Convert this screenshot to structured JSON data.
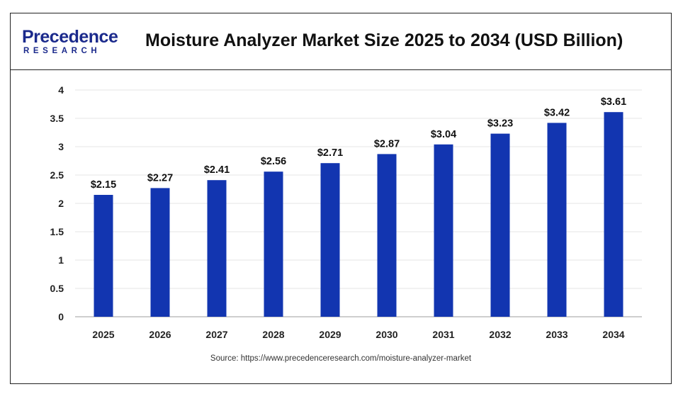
{
  "header": {
    "logo_top": "Precedence",
    "logo_bottom": "RESEARCH",
    "title": "Moisture Analyzer Market Size 2025 to 2034 (USD Billion)"
  },
  "footer": {
    "source": "Source: https://www.precedenceresearch.com/moisture-analyzer-market"
  },
  "colors": {
    "bar": "#1235b0",
    "brand": "#1b2a8c"
  },
  "chart_data": {
    "type": "bar",
    "title": "Moisture Analyzer Market Size 2025 to 2034 (USD Billion)",
    "categories": [
      "2025",
      "2026",
      "2027",
      "2028",
      "2029",
      "2030",
      "2031",
      "2032",
      "2033",
      "2034"
    ],
    "values": [
      2.15,
      2.27,
      2.41,
      2.56,
      2.71,
      2.87,
      3.04,
      3.23,
      3.42,
      3.61
    ],
    "data_labels": [
      "$2.15",
      "$2.27",
      "$2.41",
      "$2.56",
      "$2.71",
      "$2.87",
      "$3.04",
      "$3.23",
      "$3.42",
      "$3.61"
    ],
    "y_ticks": [
      "0",
      "0.5",
      "1",
      "1.5",
      "2",
      "2.5",
      "3",
      "3.5",
      "4"
    ],
    "ylim": [
      0,
      4
    ],
    "xlabel": "",
    "ylabel": "",
    "grid": true,
    "legend": "none"
  }
}
